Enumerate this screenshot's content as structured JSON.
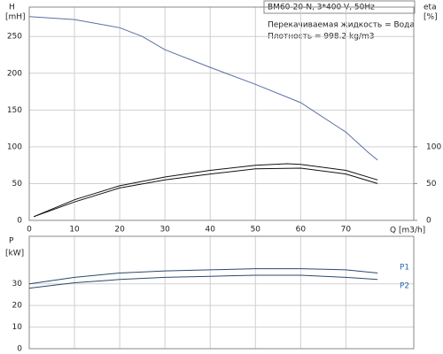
{
  "chart_data": [
    {
      "type": "line",
      "title": "BM60-20-N, 3*400 V, 50Hz",
      "annotations": [
        "Перекачиваемая жидкость = Вода",
        "Плотность = 998.2 kg/m3"
      ],
      "ylabel": "H",
      "yunit": "[mH]",
      "y2label": "eta",
      "y2unit": "[%]",
      "xlabel": "Q [m3/h]",
      "xlim": [
        0,
        85
      ],
      "xticks": [
        0,
        10,
        20,
        30,
        40,
        50,
        60,
        70
      ],
      "ylim": [
        0,
        290
      ],
      "yticks": [
        0,
        50,
        100,
        150,
        200,
        250
      ],
      "y2lim": [
        0,
        290
      ],
      "y2ticks": [
        0,
        50,
        100
      ],
      "grid": true,
      "series": [
        {
          "color": "#5b6fa6",
          "x": [
            0,
            10,
            20,
            25,
            30,
            40,
            50,
            60,
            70,
            75,
            77
          ],
          "values": [
            277,
            273,
            262,
            250,
            232,
            208,
            185,
            160,
            120,
            92,
            82
          ]
        },
        {
          "color": "#111111",
          "axis": "y2",
          "x": [
            1,
            10,
            20,
            30,
            40,
            50,
            57,
            60,
            70,
            77
          ],
          "values": [
            5,
            28,
            47,
            59,
            68,
            75,
            77,
            76,
            68,
            55
          ]
        },
        {
          "color": "#111111",
          "axis": "y2",
          "x": [
            1,
            10,
            20,
            30,
            40,
            50,
            60,
            70,
            77
          ],
          "values": [
            5,
            25,
            44,
            55,
            63,
            70,
            71,
            63,
            50
          ]
        }
      ]
    },
    {
      "type": "line",
      "ylabel": "P",
      "yunit": "[kW]",
      "xlim": [
        0,
        85
      ],
      "xticks": [
        0,
        10,
        20,
        30,
        40,
        50,
        60,
        70
      ],
      "ylim": [
        0,
        52
      ],
      "yticks": [
        0,
        10,
        20,
        30
      ],
      "grid": true,
      "series": [
        {
          "name": "P1",
          "color": "#2a4a6e",
          "x": [
            0,
            10,
            20,
            30,
            40,
            50,
            60,
            70,
            77
          ],
          "values": [
            30,
            33,
            35,
            36,
            36.5,
            37,
            37,
            36.5,
            35
          ]
        },
        {
          "name": "P2",
          "color": "#2a4a6e",
          "x": [
            0,
            10,
            20,
            30,
            40,
            50,
            60,
            70,
            77
          ],
          "values": [
            28,
            30.5,
            32,
            33,
            33.5,
            34,
            34,
            33,
            32
          ]
        }
      ]
    }
  ]
}
